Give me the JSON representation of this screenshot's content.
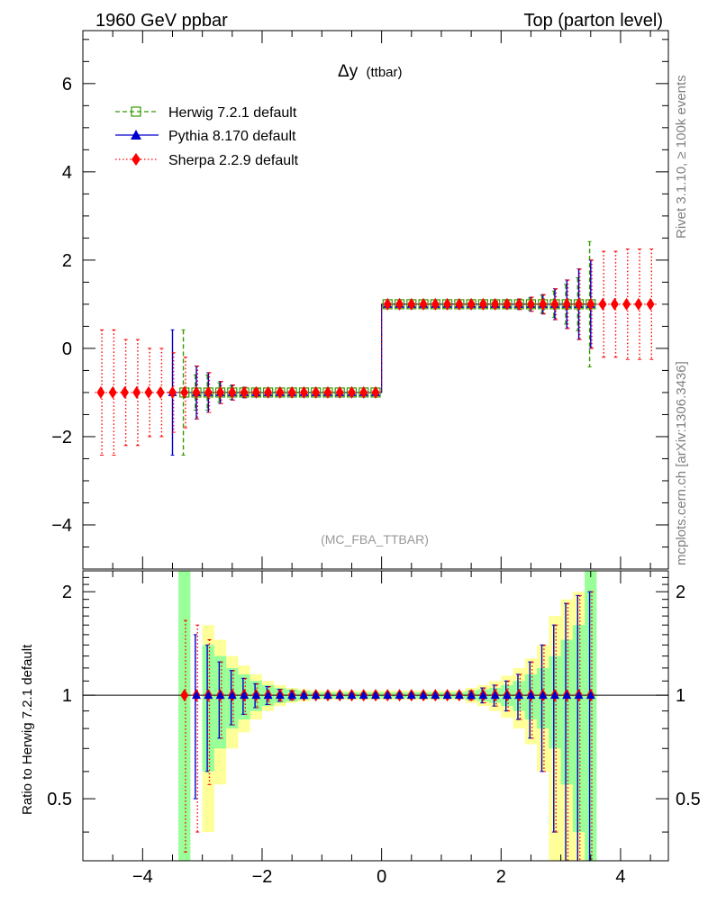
{
  "header": {
    "left": "1960 GeV ppbar",
    "right": "Top (parton level)"
  },
  "side_text": {
    "rivet": "Rivet 3.1.10, ≥ 100k events",
    "mcplots": "mcplots.cern.ch [arXiv:1306.3436]"
  },
  "chart_data": {
    "type": "line",
    "title_main": "Δy",
    "title_sub": "(ttbar)",
    "analysis_label": "(MC_FBA_TTBAR)",
    "xlabel": "",
    "ylabel_ratio": "Ratio to Herwig 7.2.1 default",
    "xlim": [
      -5,
      4.8
    ],
    "ylim": [
      -5,
      7.2
    ],
    "ratio_ylim": [
      0.33,
      2.3
    ],
    "x_ticks": [
      -4,
      -2,
      0,
      2,
      4
    ],
    "x_tick_labels": [
      "−4",
      "−2",
      "0",
      "2",
      "4"
    ],
    "y_ticks": [
      -4,
      -2,
      0,
      2,
      4,
      6
    ],
    "y_tick_labels": [
      "−4",
      "−2",
      "0",
      "2",
      "4",
      "6"
    ],
    "ratio_ticks": [
      0.5,
      1,
      2
    ],
    "ratio_tick_labels": [
      "0.5",
      "1",
      "2"
    ],
    "legend_position": "top-left",
    "bin_width": 0.2,
    "x_centers": [
      -4.7,
      -4.5,
      -4.3,
      -4.1,
      -3.9,
      -3.7,
      -3.5,
      -3.3,
      -3.1,
      -2.9,
      -2.7,
      -2.5,
      -2.3,
      -2.1,
      -1.9,
      -1.7,
      -1.5,
      -1.3,
      -1.1,
      -0.9,
      -0.7,
      -0.5,
      -0.3,
      -0.1,
      0.1,
      0.3,
      0.5,
      0.7,
      0.9,
      1.1,
      1.3,
      1.5,
      1.7,
      1.9,
      2.1,
      2.3,
      2.5,
      2.7,
      2.9,
      3.1,
      3.3,
      3.5,
      3.7,
      3.9,
      4.1,
      4.3,
      4.5
    ],
    "series": [
      {
        "name": "Herwig 7.2.1 default",
        "color": "#339900",
        "marker": "open-square",
        "line": "dashed",
        "values": [
          null,
          null,
          null,
          null,
          null,
          null,
          null,
          -1,
          -1,
          -1,
          -1,
          -1,
          -1,
          -1,
          -1,
          -1,
          -1,
          -1,
          -1,
          -1,
          -1,
          -1,
          -1,
          -1,
          1,
          1,
          1,
          1,
          1,
          1,
          1,
          1,
          1,
          1,
          1,
          1,
          1,
          1,
          1,
          1,
          1,
          1,
          null,
          null,
          null,
          null,
          null
        ],
        "errors": [
          null,
          null,
          null,
          null,
          null,
          null,
          null,
          1.42,
          0.4,
          0.4,
          0.22,
          0.15,
          0.1,
          0.07,
          0.05,
          0.04,
          0.03,
          0.03,
          0.03,
          0.03,
          0.03,
          0.03,
          0.03,
          0.03,
          0.03,
          0.03,
          0.03,
          0.03,
          0.03,
          0.03,
          0.03,
          0.04,
          0.05,
          0.06,
          0.08,
          0.1,
          0.14,
          0.2,
          0.3,
          0.45,
          0.6,
          1.42,
          null,
          null,
          null,
          null,
          null
        ]
      },
      {
        "name": "Pythia 8.170 default",
        "color": "#0000cc",
        "marker": "filled-triangle",
        "line": "solid",
        "values": [
          null,
          null,
          null,
          null,
          null,
          null,
          -1,
          null,
          -1,
          -1,
          -1,
          -1,
          -1,
          -1,
          -1,
          -1,
          -1,
          -1,
          -1,
          -1,
          -1,
          -1,
          -1,
          -1,
          1,
          1,
          1,
          1,
          1,
          1,
          1,
          1,
          1,
          1,
          1,
          1,
          1,
          1,
          1,
          1,
          1,
          1,
          null,
          null,
          null,
          null,
          null
        ],
        "errors": [
          null,
          null,
          null,
          null,
          null,
          null,
          1.42,
          null,
          0.6,
          0.45,
          0.25,
          0.17,
          0.12,
          0.08,
          0.06,
          0.05,
          0.04,
          0.03,
          0.03,
          0.03,
          0.03,
          0.03,
          0.03,
          0.03,
          0.03,
          0.03,
          0.03,
          0.03,
          0.03,
          0.03,
          0.04,
          0.05,
          0.06,
          0.07,
          0.09,
          0.12,
          0.16,
          0.22,
          0.35,
          0.55,
          0.8,
          1.0,
          null,
          null,
          null,
          null,
          null
        ]
      },
      {
        "name": "Sherpa 2.2.9 default",
        "color": "#ff0000",
        "marker": "filled-diamond",
        "line": "dotted",
        "values": [
          -1,
          -1,
          -1,
          -1,
          -1,
          -1,
          -1,
          -1,
          -1,
          -1,
          -1,
          -1,
          -1,
          -1,
          -1,
          -1,
          -1,
          -1,
          -1,
          -1,
          -1,
          -1,
          -1,
          -1,
          1,
          1,
          1,
          1,
          1,
          1,
          1,
          1,
          1,
          1,
          1,
          1,
          1,
          1,
          1,
          1,
          1,
          1,
          1,
          1,
          1,
          1,
          1
        ],
        "errors": [
          1.42,
          1.42,
          1.2,
          1.2,
          1.0,
          1.0,
          0.9,
          0.8,
          0.6,
          0.45,
          0.25,
          0.17,
          0.12,
          0.08,
          0.06,
          0.05,
          0.04,
          0.03,
          0.03,
          0.03,
          0.03,
          0.03,
          0.03,
          0.03,
          0.03,
          0.03,
          0.03,
          0.03,
          0.03,
          0.03,
          0.04,
          0.05,
          0.06,
          0.07,
          0.09,
          0.12,
          0.16,
          0.22,
          0.35,
          0.55,
          0.8,
          1.0,
          1.2,
          1.2,
          1.25,
          1.25,
          1.25
        ]
      }
    ],
    "ratio": {
      "reference": "Herwig 7.2.1 default",
      "band_stat_halfwidth": [
        null,
        null,
        null,
        null,
        null,
        null,
        null,
        1.5,
        null,
        0.4,
        0.3,
        0.2,
        0.15,
        0.1,
        0.07,
        0.05,
        0.04,
        0.03,
        0.02,
        0.02,
        0.02,
        0.02,
        0.02,
        0.02,
        0.02,
        0.02,
        0.02,
        0.02,
        0.02,
        0.02,
        0.02,
        0.03,
        0.04,
        0.05,
        0.07,
        0.1,
        0.15,
        0.2,
        0.3,
        0.45,
        0.6,
        1.5,
        null,
        null,
        null,
        null,
        null
      ],
      "band_total_halfwidth": [
        null,
        null,
        null,
        null,
        null,
        null,
        null,
        null,
        null,
        0.6,
        0.45,
        0.3,
        0.22,
        0.15,
        0.1,
        0.07,
        0.05,
        0.04,
        0.03,
        0.03,
        0.03,
        0.03,
        0.03,
        0.03,
        0.03,
        0.03,
        0.03,
        0.03,
        0.03,
        0.03,
        0.03,
        0.05,
        0.07,
        0.1,
        0.14,
        0.2,
        0.28,
        0.4,
        0.7,
        0.9,
        1.0,
        null,
        null,
        null,
        null,
        null,
        null
      ],
      "pythia_values": [
        null,
        null,
        null,
        null,
        null,
        null,
        null,
        null,
        1,
        1,
        1,
        1,
        1,
        1,
        1,
        1,
        1,
        1,
        1,
        1,
        1,
        1,
        1,
        1,
        1,
        1,
        1,
        1,
        1,
        1,
        1,
        1,
        1,
        1,
        1,
        1,
        1,
        1,
        1,
        1,
        1,
        1,
        null,
        null,
        null,
        null,
        null
      ],
      "pythia_errors": [
        null,
        null,
        null,
        null,
        null,
        null,
        null,
        null,
        0.5,
        0.4,
        0.25,
        0.18,
        0.12,
        0.08,
        0.06,
        0.04,
        0.03,
        0.02,
        0.02,
        0.02,
        0.02,
        0.02,
        0.02,
        0.02,
        0.02,
        0.02,
        0.02,
        0.02,
        0.02,
        0.02,
        0.02,
        0.03,
        0.05,
        0.07,
        0.1,
        0.15,
        0.25,
        0.4,
        0.6,
        0.85,
        0.95,
        1.0,
        null,
        null,
        null,
        null,
        null
      ],
      "sherpa_values": [
        null,
        null,
        null,
        null,
        null,
        null,
        null,
        1,
        1,
        1,
        1,
        1,
        1,
        1,
        1,
        1,
        1,
        1,
        1,
        1,
        1,
        1,
        1,
        1,
        1,
        1,
        1,
        1,
        1,
        1,
        1,
        1,
        1,
        1,
        1,
        1,
        1,
        1,
        1,
        1,
        1,
        1,
        null,
        null,
        null,
        null,
        null
      ],
      "sherpa_errors": [
        null,
        null,
        null,
        null,
        null,
        null,
        null,
        0.65,
        0.6,
        0.45,
        0.25,
        0.18,
        0.12,
        0.08,
        0.06,
        0.04,
        0.03,
        0.02,
        0.02,
        0.02,
        0.02,
        0.02,
        0.02,
        0.02,
        0.02,
        0.02,
        0.02,
        0.02,
        0.02,
        0.02,
        0.02,
        0.03,
        0.05,
        0.07,
        0.1,
        0.15,
        0.25,
        0.4,
        0.6,
        0.85,
        0.95,
        1.0,
        null,
        null,
        null,
        null,
        null
      ]
    }
  }
}
